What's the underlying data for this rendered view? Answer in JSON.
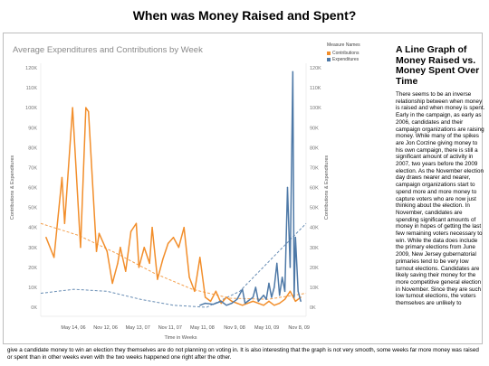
{
  "page_title": "When was Money Raised and Spent?",
  "side": {
    "title": "A Line Graph of Money Raised vs. Money Spent Over Time",
    "body": "There seems to be an inverse relationship between when money is raised and when money is spent. Early in the campaign, as early as 2006, candidates and their campaign organizations are raising money. While many of the spikes are Jon Corzine giving money to his own campaign, there is still a significant amount of activity in 2007, two years before the 2009 election. As the November election day draws nearer and nearer, campaign organizations start to spend more and more money to capture voters who are now just thinking about the election. In November, candidates are spending significant amounts of money in hopes of getting the last few remaining voters necessary to win. While the data does include the primary elections from June 2009, New Jersey gubernatorial primaries tend to be very low turnout elections. Candidates are likely saving their money for the more competitive general election in November. Since they are such low turnout elections, the voters themselves are unlikely to",
    "continuation": "give a candidate money to win an election they themselves are do not planning on voting in. It is also interesting that the graph is not very smooth, some weeks far more money was raised or spent than in other weeks even with the two weeks happened one right after the other."
  },
  "chart_data": {
    "type": "line",
    "title": "Average Expenditures and Contributions by Week",
    "xlabel": "Time in Weeks",
    "ylabel": "Contributions & Expenditures",
    "ylabel_right": "Contributions & Expenditures",
    "x_ticks": [
      "May 14, 06",
      "Nov 12, 06",
      "May 13, 07",
      "Nov 11, 07",
      "May 11, 08",
      "Nov 9, 08",
      "May 10, 09",
      "Nov 8, 09"
    ],
    "y_ticks": [
      "0K",
      "10K",
      "20K",
      "30K",
      "40K",
      "50K",
      "60K",
      "70K",
      "80K",
      "90K",
      "100K",
      "110K",
      "120K"
    ],
    "ylim": [
      0,
      120000
    ],
    "legend_title": "Measure Names",
    "legend_position": "top-right",
    "series": [
      {
        "name": "Contributions",
        "color": "#f28e2b",
        "x": [
          0.02,
          0.05,
          0.08,
          0.09,
          0.12,
          0.15,
          0.17,
          0.18,
          0.21,
          0.22,
          0.25,
          0.27,
          0.29,
          0.3,
          0.32,
          0.34,
          0.36,
          0.37,
          0.39,
          0.41,
          0.42,
          0.44,
          0.46,
          0.48,
          0.5,
          0.52,
          0.54,
          0.56,
          0.58,
          0.6,
          0.62,
          0.64,
          0.66,
          0.68,
          0.7,
          0.72,
          0.74,
          0.76,
          0.78,
          0.8,
          0.82,
          0.84,
          0.86,
          0.88,
          0.9,
          0.92,
          0.94,
          0.96,
          0.98
        ],
        "values": [
          35000,
          25000,
          65000,
          42000,
          100000,
          30000,
          100000,
          98000,
          28000,
          37000,
          28000,
          12000,
          22000,
          30000,
          18000,
          38000,
          42000,
          20000,
          30000,
          22000,
          40000,
          14000,
          24000,
          32000,
          35000,
          30000,
          40000,
          15000,
          8000,
          25000,
          5000,
          3000,
          8000,
          2000,
          5000,
          3000,
          2000,
          1000,
          2000,
          3000,
          2000,
          1000,
          3000,
          1000,
          2000,
          4000,
          8000,
          3000,
          5000
        ]
      },
      {
        "name": "Expenditures",
        "color": "#4e79a7",
        "x": [
          0.6,
          0.62,
          0.65,
          0.68,
          0.7,
          0.72,
          0.74,
          0.76,
          0.77,
          0.78,
          0.8,
          0.81,
          0.82,
          0.84,
          0.85,
          0.86,
          0.87,
          0.88,
          0.89,
          0.9,
          0.91,
          0.92,
          0.93,
          0.94,
          0.95,
          0.955,
          0.96,
          0.97,
          0.98
        ],
        "values": [
          1000,
          2000,
          1500,
          3000,
          1000,
          2000,
          4000,
          9000,
          2000,
          3000,
          5000,
          10000,
          3000,
          6000,
          4000,
          12000,
          5000,
          10000,
          22000,
          6000,
          15000,
          8000,
          60000,
          20000,
          118000,
          5000,
          35000,
          8000,
          3000
        ]
      }
    ],
    "trend_lines": [
      {
        "name": "Contributions trend",
        "color": "#f28e2b",
        "values": [
          42000,
          36000,
          27000,
          17000,
          9000,
          4500,
          4000,
          7000
        ]
      },
      {
        "name": "Expenditures trend",
        "color": "#4e79a7",
        "values": [
          7000,
          9000,
          8000,
          4000,
          1000,
          0,
          8000,
          25000,
          42000
        ]
      }
    ],
    "grid": false
  }
}
